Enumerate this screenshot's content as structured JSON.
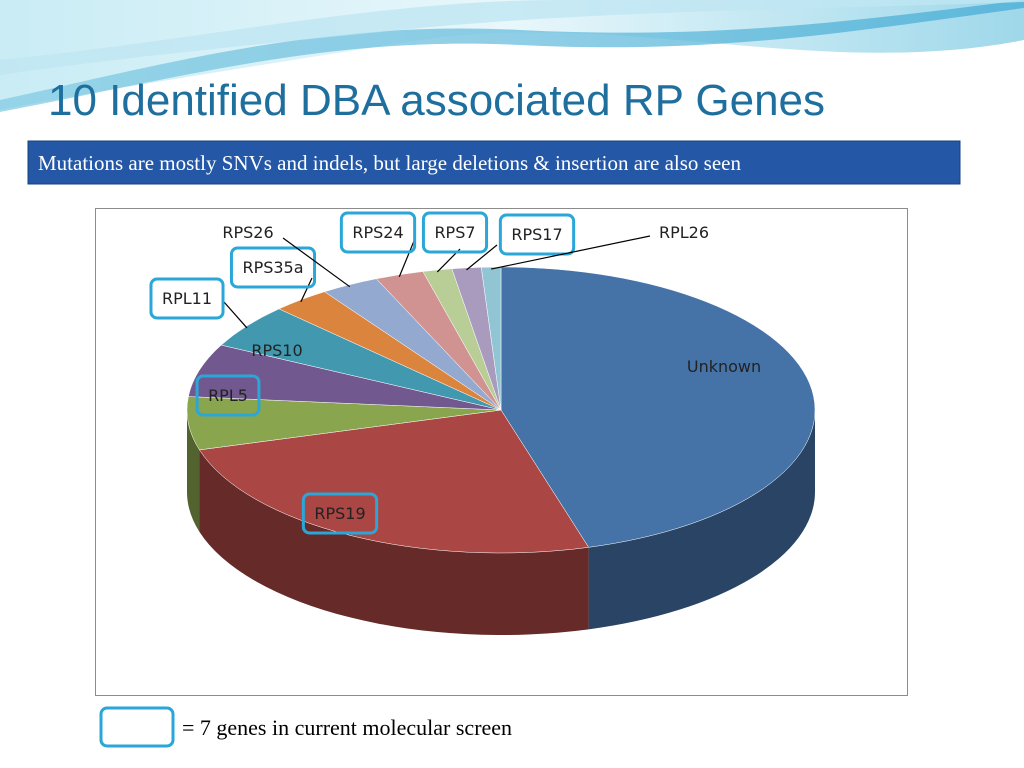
{
  "slide": {
    "title": "10 Identified DBA associated RP Genes",
    "subtitle": "Mutations are mostly SNVs and indels, but large deletions & insertion are also seen",
    "legend_note": "= 7 genes in current molecular screen"
  },
  "chart_data": {
    "type": "pie",
    "categories": [
      "Unknown",
      "RPS19",
      "RPL5",
      "RPS10",
      "RPL11",
      "RPS35a",
      "RPS26",
      "RPS24",
      "RPS7",
      "RPS17",
      "RPL26"
    ],
    "values": [
      45.5,
      25,
      6,
      6,
      5,
      3,
      3,
      2.5,
      1.5,
      1.5,
      1
    ],
    "colors": [
      "#4572a7",
      "#aa4643",
      "#89a54e",
      "#71588f",
      "#4198af",
      "#db843d",
      "#93a9cf",
      "#d19392",
      "#b9cd96",
      "#a99bbd",
      "#92c5d3"
    ],
    "highlighted": [
      false,
      true,
      true,
      false,
      true,
      true,
      false,
      true,
      true,
      true,
      false
    ]
  }
}
